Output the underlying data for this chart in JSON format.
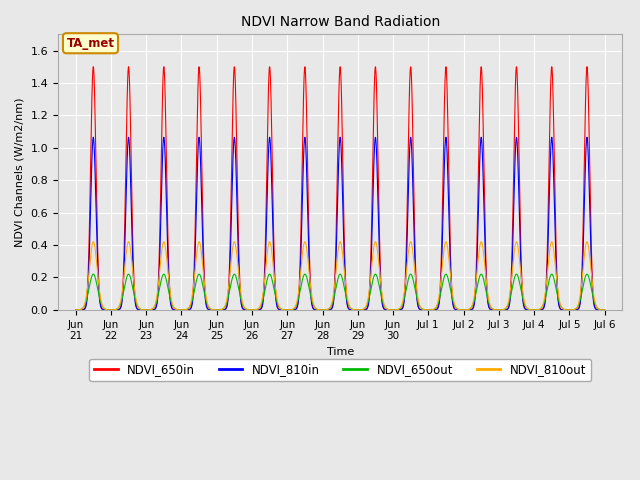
{
  "title": "NDVI Narrow Band Radiation",
  "xlabel": "Time",
  "ylabel": "NDVI Channels (W/m2/nm)",
  "annotation": "TA_met",
  "ylim": [
    0.0,
    1.7
  ],
  "yticks": [
    0.0,
    0.2,
    0.4,
    0.6,
    0.8,
    1.0,
    1.2,
    1.4,
    1.6
  ],
  "colors": {
    "NDVI_650in": "#ff0000",
    "NDVI_810in": "#0000ff",
    "NDVI_650out": "#00bb00",
    "NDVI_810out": "#ffaa00"
  },
  "amplitudes": {
    "NDVI_650in": 1.5,
    "NDVI_810in": 1.065,
    "NDVI_650out": 0.22,
    "NDVI_810out": 0.42
  },
  "n_days": 15,
  "fig_bg": "#e8e8e8",
  "plot_bg": "#e8e8e8"
}
